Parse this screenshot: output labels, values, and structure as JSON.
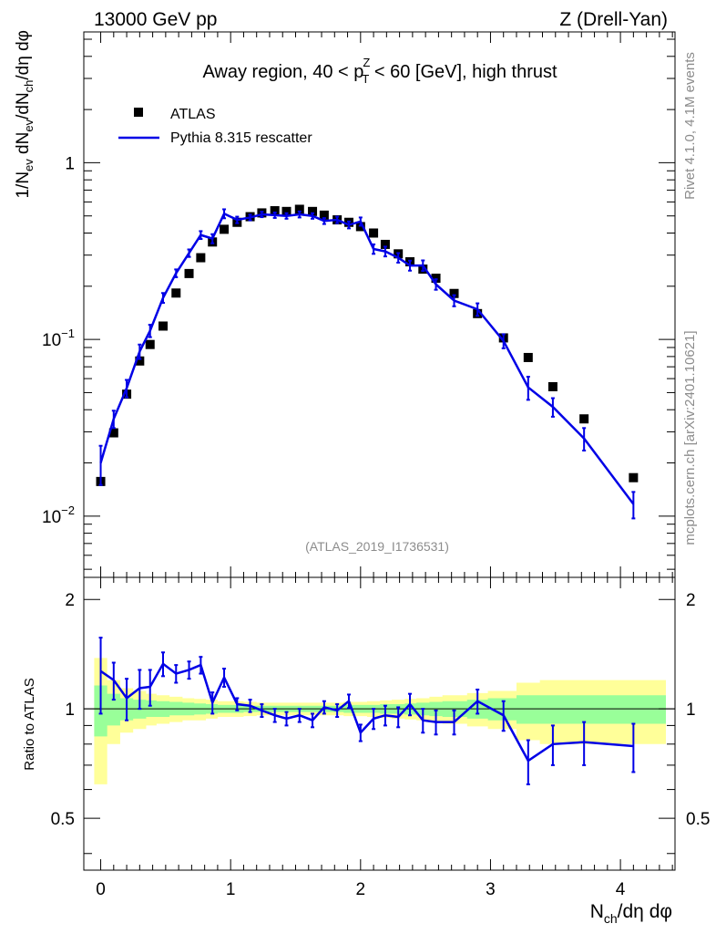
{
  "header": {
    "left": "13000 GeV pp",
    "right": "Z (Drell-Yan)"
  },
  "side_labels": {
    "rivet": "Rivet 4.1.0,  4.1M events",
    "mcplots": "mcplots.cern.ch [arXiv:2401.10621]"
  },
  "colors": {
    "mc": "#0000e6",
    "band_inner": "#99ff99",
    "band_outer": "#ffff99",
    "watermark": "#8c8c8c"
  },
  "chart_data": [
    {
      "type": "scatter",
      "name": "main",
      "title_parts": {
        "pre": "Away region, 40 < p",
        "sup": "Z",
        "sub": "T",
        "post": " < 60 [GeV], high thrust"
      },
      "watermark": "(ATLAS_2019_I1736531)",
      "ylabel": "1/N_ev dN_ev/dN_ch/dη dφ",
      "ylabel_parts": {
        "a": "1/N",
        "a_sub": "ev",
        "b": " dN",
        "b_sub": "ev",
        "c": "/dN",
        "c_sub": "ch",
        "d": "/dη dφ"
      },
      "yscale": "log",
      "ylim": [
        0.0045,
        5.5
      ],
      "xlim": [
        -0.13,
        4.42
      ],
      "y_major_ticks": [
        {
          "value": 0.01,
          "label": "10",
          "sup": "−2"
        },
        {
          "value": 0.1,
          "label": "10",
          "sup": "−1"
        },
        {
          "value": 1,
          "label": "1",
          "sup": ""
        }
      ],
      "legend": [
        {
          "label": "ATLAS",
          "marker": "square"
        },
        {
          "label": "Pythia 8.315 rescatter",
          "marker": "line"
        }
      ],
      "legend_position": "top-left",
      "series": [
        {
          "name": "ATLAS",
          "x": [
            0.0,
            0.1,
            0.2,
            0.3,
            0.38,
            0.48,
            0.58,
            0.68,
            0.77,
            0.86,
            0.95,
            1.05,
            1.15,
            1.24,
            1.34,
            1.43,
            1.53,
            1.63,
            1.72,
            1.82,
            1.91,
            2.0,
            2.1,
            2.19,
            2.29,
            2.38,
            2.48,
            2.58,
            2.72,
            2.9,
            3.1,
            3.29,
            3.48,
            3.72,
            4.1
          ],
          "y": [
            0.0157,
            0.0296,
            0.049,
            0.0755,
            0.0936,
            0.119,
            0.183,
            0.236,
            0.29,
            0.356,
            0.42,
            0.46,
            0.495,
            0.52,
            0.535,
            0.53,
            0.545,
            0.53,
            0.505,
            0.475,
            0.46,
            0.435,
            0.4,
            0.345,
            0.305,
            0.275,
            0.25,
            0.222,
            0.182,
            0.14,
            0.102,
            0.079,
            0.054,
            0.0355,
            0.0165
          ]
        },
        {
          "name": "Pythia 8.315 rescatter",
          "x": [
            0.0,
            0.1,
            0.2,
            0.3,
            0.38,
            0.48,
            0.58,
            0.68,
            0.77,
            0.86,
            0.95,
            1.05,
            1.15,
            1.24,
            1.34,
            1.43,
            1.53,
            1.63,
            1.72,
            1.82,
            1.91,
            2.0,
            2.1,
            2.19,
            2.29,
            2.38,
            2.48,
            2.58,
            2.72,
            2.9,
            3.1,
            3.29,
            3.48,
            3.72,
            4.1
          ],
          "y": [
            0.02,
            0.0355,
            0.053,
            0.0855,
            0.112,
            0.172,
            0.237,
            0.308,
            0.39,
            0.372,
            0.515,
            0.475,
            0.49,
            0.51,
            0.505,
            0.5,
            0.51,
            0.5,
            0.468,
            0.475,
            0.445,
            0.465,
            0.325,
            0.315,
            0.29,
            0.262,
            0.262,
            0.205,
            0.166,
            0.148,
            0.098,
            0.0535,
            0.0415,
            0.0275,
            0.0117
          ],
          "err": [
            0.005,
            0.004,
            0.006,
            0.008,
            0.009,
            0.011,
            0.012,
            0.015,
            0.02,
            0.022,
            0.03,
            0.02,
            0.018,
            0.018,
            0.018,
            0.018,
            0.02,
            0.018,
            0.018,
            0.02,
            0.02,
            0.025,
            0.02,
            0.02,
            0.018,
            0.017,
            0.018,
            0.014,
            0.012,
            0.012,
            0.009,
            0.008,
            0.005,
            0.004,
            0.002
          ]
        }
      ]
    },
    {
      "type": "line",
      "name": "ratio",
      "ylabel": "Ratio to ATLAS",
      "xlabel": "N_ch/dη dφ",
      "xlabel_parts": {
        "a": "N",
        "a_sub": "ch",
        "b": "/dη dφ"
      },
      "xlim": [
        -0.13,
        4.42
      ],
      "ylim": [
        0.36,
        2.3
      ],
      "y_major_ticks": [
        {
          "value": 0.5,
          "label": "0.5"
        },
        {
          "value": 1,
          "label": "1"
        },
        {
          "value": 2,
          "label": "2"
        }
      ],
      "x_major_ticks": [
        {
          "value": 0,
          "label": "0"
        },
        {
          "value": 1,
          "label": "1"
        },
        {
          "value": 2,
          "label": "2"
        },
        {
          "value": 3,
          "label": "3"
        },
        {
          "value": 4,
          "label": "4"
        }
      ],
      "bands": {
        "edges": [
          -0.05,
          0.05,
          0.15,
          0.25,
          0.35,
          0.43,
          0.53,
          0.63,
          0.72,
          0.81,
          0.9,
          1.0,
          1.1,
          1.2,
          1.29,
          1.39,
          1.48,
          1.58,
          1.68,
          1.77,
          1.87,
          1.96,
          2.05,
          2.15,
          2.24,
          2.34,
          2.43,
          2.53,
          2.63,
          2.82,
          2.98,
          3.2,
          3.38,
          3.58,
          3.86,
          4.35
        ],
        "inner_lo": [
          0.84,
          0.9,
          0.93,
          0.94,
          0.95,
          0.95,
          0.96,
          0.96,
          0.965,
          0.97,
          0.975,
          0.975,
          0.98,
          0.98,
          0.98,
          0.98,
          0.98,
          0.98,
          0.98,
          0.98,
          0.975,
          0.975,
          0.975,
          0.97,
          0.97,
          0.965,
          0.96,
          0.955,
          0.95,
          0.94,
          0.93,
          0.91,
          0.91,
          0.91,
          0.91
        ],
        "inner_hi": [
          1.16,
          1.1,
          1.07,
          1.06,
          1.055,
          1.05,
          1.045,
          1.04,
          1.035,
          1.03,
          1.025,
          1.025,
          1.02,
          1.02,
          1.02,
          1.02,
          1.02,
          1.02,
          1.02,
          1.02,
          1.025,
          1.025,
          1.025,
          1.03,
          1.03,
          1.035,
          1.04,
          1.045,
          1.05,
          1.06,
          1.07,
          1.09,
          1.09,
          1.09,
          1.09
        ],
        "outer_lo": [
          0.62,
          0.8,
          0.86,
          0.88,
          0.9,
          0.91,
          0.92,
          0.93,
          0.93,
          0.94,
          0.95,
          0.95,
          0.955,
          0.96,
          0.96,
          0.96,
          0.96,
          0.96,
          0.96,
          0.96,
          0.955,
          0.955,
          0.95,
          0.945,
          0.94,
          0.935,
          0.93,
          0.92,
          0.91,
          0.895,
          0.88,
          0.82,
          0.8,
          0.8,
          0.8
        ],
        "outer_hi": [
          1.38,
          1.2,
          1.14,
          1.12,
          1.1,
          1.09,
          1.08,
          1.07,
          1.065,
          1.06,
          1.05,
          1.05,
          1.045,
          1.04,
          1.04,
          1.04,
          1.04,
          1.04,
          1.04,
          1.04,
          1.045,
          1.045,
          1.05,
          1.055,
          1.06,
          1.065,
          1.07,
          1.08,
          1.09,
          1.105,
          1.12,
          1.18,
          1.2,
          1.2,
          1.2
        ]
      },
      "series": [
        {
          "name": "Pythia 8.315 rescatter / ATLAS",
          "x": [
            0.0,
            0.1,
            0.2,
            0.3,
            0.38,
            0.48,
            0.58,
            0.68,
            0.77,
            0.86,
            0.95,
            1.05,
            1.15,
            1.24,
            1.34,
            1.43,
            1.53,
            1.63,
            1.72,
            1.82,
            1.91,
            2.0,
            2.1,
            2.19,
            2.29,
            2.38,
            2.48,
            2.58,
            2.72,
            2.9,
            3.1,
            3.29,
            3.48,
            3.72,
            4.1
          ],
          "y": [
            1.27,
            1.2,
            1.07,
            1.14,
            1.15,
            1.33,
            1.25,
            1.28,
            1.32,
            1.04,
            1.22,
            1.03,
            1.02,
            0.99,
            0.96,
            0.94,
            0.96,
            0.93,
            1.01,
            0.99,
            1.05,
            0.86,
            0.94,
            0.96,
            0.95,
            1.03,
            0.93,
            0.92,
            0.92,
            1.05,
            0.96,
            0.72,
            0.8,
            0.81,
            0.79
          ],
          "err": [
            0.3,
            0.14,
            0.14,
            0.14,
            0.13,
            0.1,
            0.07,
            0.07,
            0.07,
            0.07,
            0.07,
            0.04,
            0.04,
            0.04,
            0.04,
            0.04,
            0.04,
            0.04,
            0.04,
            0.04,
            0.045,
            0.045,
            0.06,
            0.06,
            0.06,
            0.07,
            0.07,
            0.07,
            0.07,
            0.08,
            0.09,
            0.1,
            0.1,
            0.11,
            0.12
          ]
        }
      ]
    }
  ]
}
